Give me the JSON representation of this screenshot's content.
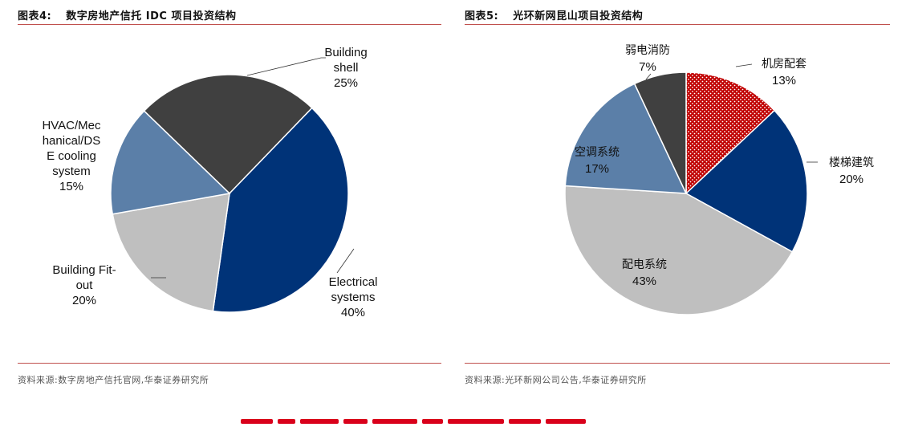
{
  "left": {
    "title_prefix": "图表4:",
    "title": "数字房地产信托 IDC 项目投资结构",
    "source": "资料来源:数字房地产信托官网,华泰证券研究所"
  },
  "right": {
    "title_prefix": "图表5:",
    "title": "光环新网昆山项目投资结构",
    "source": "资料来源:光环新网公司公告,华泰证券研究所"
  },
  "colors": {
    "rule": "#c0504d",
    "dark_gray": "#404040",
    "navy": "#003378",
    "light_gray": "#bfbfbf",
    "steel_blue": "#5b7fa8",
    "red": "#c00000"
  },
  "chart_data": [
    {
      "type": "pie",
      "title": "数字房地产信托 IDC 项目投资结构",
      "start_angle_deg": -46,
      "slices": [
        {
          "label": [
            "Building",
            "shell"
          ],
          "value": 25,
          "value_label": "25%",
          "color": "#404040"
        },
        {
          "label": [
            "Electrical",
            "systems"
          ],
          "value": 40,
          "value_label": "40%",
          "color": "#003378"
        },
        {
          "label": [
            "Building Fit-",
            "out"
          ],
          "value": 20,
          "value_label": "20%",
          "color": "#bfbfbf"
        },
        {
          "label": [
            "HVAC/Mec",
            "hanical/DS",
            "E cooling",
            "system"
          ],
          "value": 15,
          "value_label": "15%",
          "color": "#5b7fa8"
        }
      ]
    },
    {
      "type": "pie",
      "title": "光环新网昆山项目投资结构",
      "start_angle_deg": 0,
      "slices": [
        {
          "label": [
            "机房配套"
          ],
          "value": 13,
          "value_label": "13%",
          "color": "#c00000",
          "pattern": "dots"
        },
        {
          "label": [
            "楼梯建筑"
          ],
          "value": 20,
          "value_label": "20%",
          "color": "#003378"
        },
        {
          "label": [
            "配电系统"
          ],
          "value": 43,
          "value_label": "43%",
          "color": "#bfbfbf"
        },
        {
          "label": [
            "空调系统"
          ],
          "value": 17,
          "value_label": "17%",
          "color": "#5b7fa8"
        },
        {
          "label": [
            "弱电消防"
          ],
          "value": 7,
          "value_label": "7%",
          "color": "#404040"
        }
      ]
    }
  ]
}
